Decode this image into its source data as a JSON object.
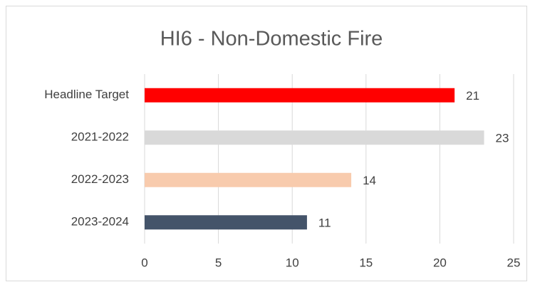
{
  "chart_data": {
    "type": "bar",
    "orientation": "horizontal",
    "title": "HI6 - Non-Domestic Fire",
    "categories": [
      "Headline Target",
      "2021-2022",
      "2022-2023",
      "2023-2024"
    ],
    "values": [
      21,
      23,
      14,
      11
    ],
    "colors": [
      "#ff0000",
      "#d9d9d9",
      "#f8cbad",
      "#44546a"
    ],
    "xlim": [
      0,
      25
    ],
    "xticks": [
      0,
      5,
      10,
      15,
      20,
      25
    ],
    "grid": true
  }
}
